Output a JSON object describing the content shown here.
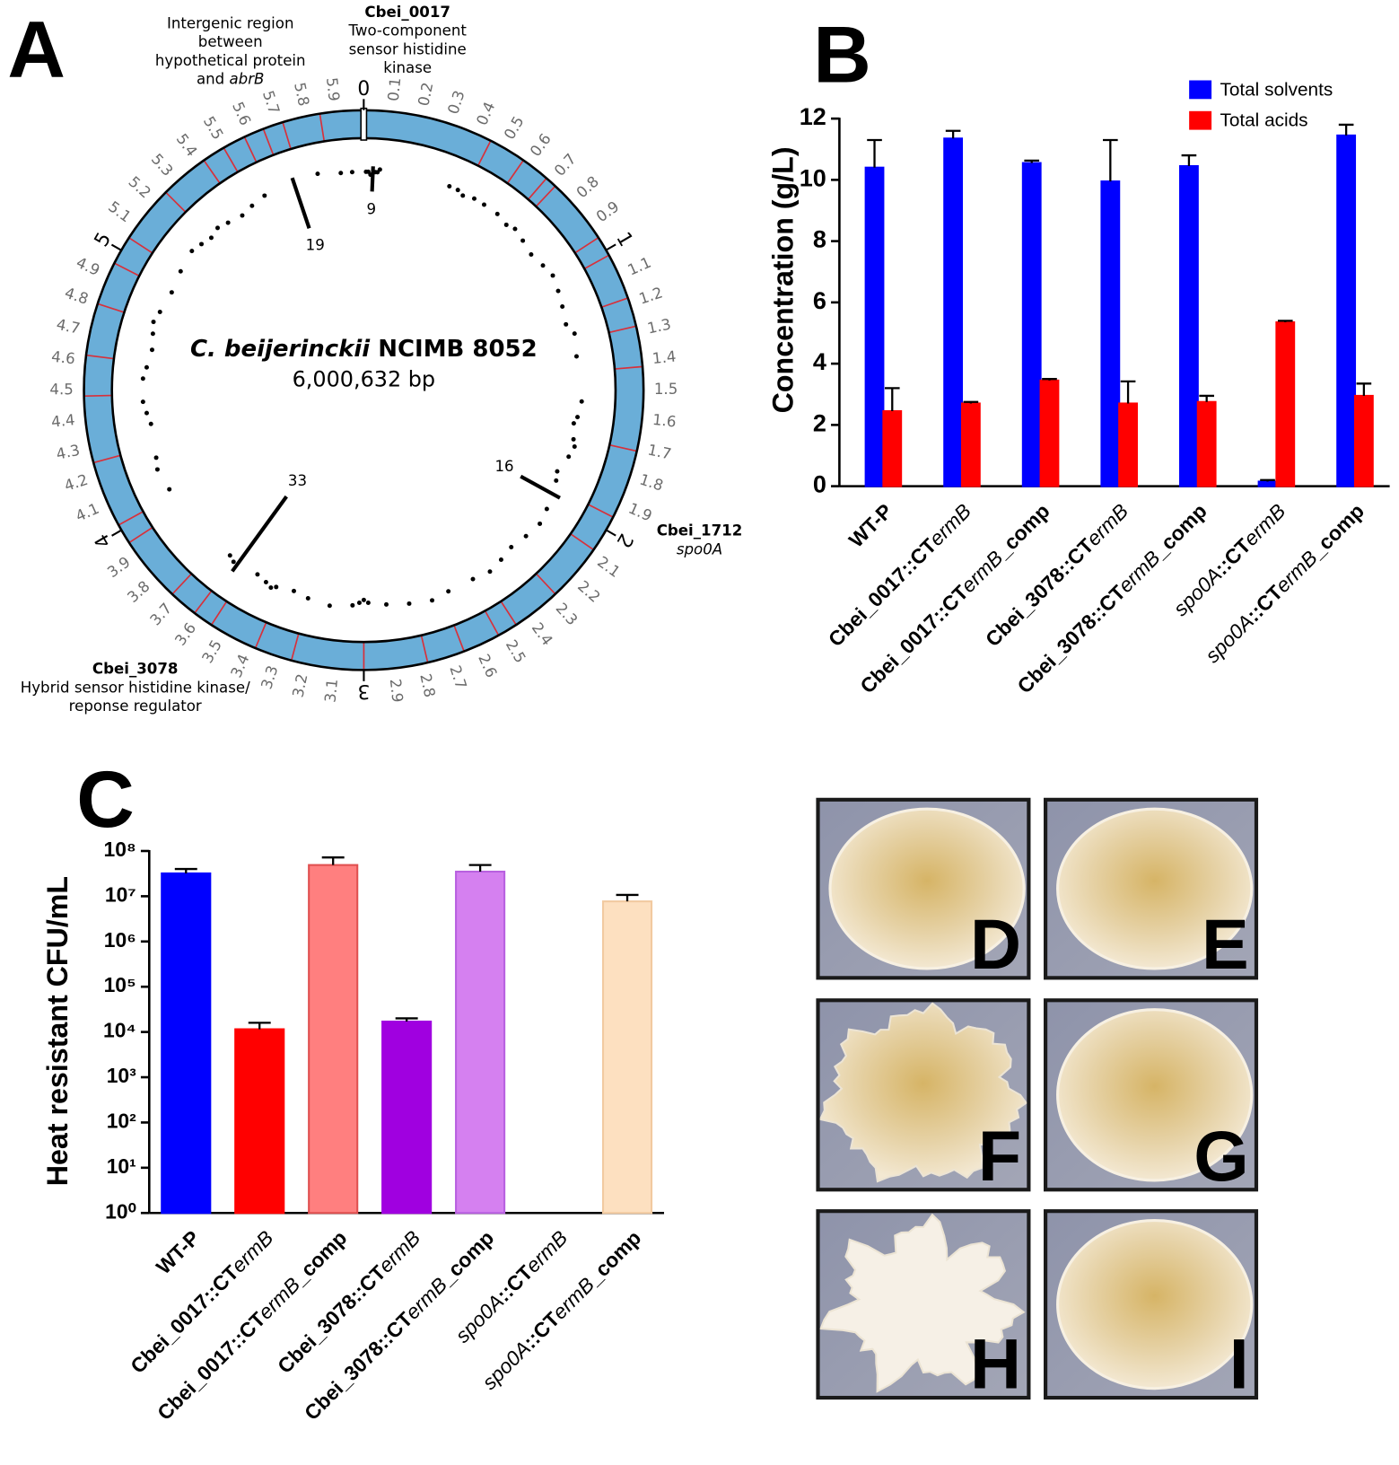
{
  "chart_data": [
    {
      "type": "circos",
      "label": "A",
      "organism": "C. beijerinckii",
      "strain": "NCIMB 8052",
      "size": "6,000,632 bp",
      "xlim": [
        0,
        6.000632
      ],
      "xticks": [
        0,
        0.1,
        0.2,
        0.3,
        0.4,
        0.5,
        0.6,
        0.7,
        0.8,
        0.9,
        1,
        1.1,
        1.2,
        1.3,
        1.4,
        1.5,
        1.6,
        1.7,
        1.8,
        1.9,
        2,
        2.1,
        2.2,
        2.3,
        2.4,
        2.5,
        2.6,
        2.7,
        2.8,
        2.9,
        3,
        3.1,
        3.2,
        3.3,
        3.4,
        3.5,
        3.6,
        3.7,
        3.8,
        3.9,
        4,
        4.1,
        4.2,
        4.3,
        4.4,
        4.5,
        4.6,
        4.7,
        4.8,
        4.9,
        5,
        5.1,
        5.2,
        5.3,
        5.4,
        5.5,
        5.6,
        5.7,
        5.8,
        5.9
      ],
      "ring_color": "#6aaed8",
      "site_color": "#d8303a",
      "sites": [
        0.45,
        0.58,
        0.68,
        0.72,
        0.95,
        1.02,
        1.18,
        1.28,
        1.42,
        1.71,
        1.95,
        2.08,
        2.28,
        2.45,
        2.52,
        2.65,
        2.78,
        3.0,
        3.25,
        3.38,
        3.55,
        3.62,
        3.72,
        3.95,
        4.02,
        4.25,
        4.48,
        4.62,
        4.8,
        4.95,
        5.05,
        5.25,
        5.42,
        5.5,
        5.58,
        5.65,
        5.72,
        5.85
      ],
      "hits": {
        "x": [
          0.01,
          0.02,
          0.03,
          0.05,
          0.06,
          0.07,
          0.38,
          0.42,
          0.45,
          0.5,
          0.55,
          0.62,
          0.68,
          0.72,
          0.78,
          0.85,
          0.92,
          0.98,
          1.05,
          1.12,
          1.2,
          1.25,
          1.35,
          1.55,
          1.62,
          1.65,
          1.72,
          1.75,
          1.8,
          1.88,
          1.92,
          2.05,
          2.12,
          2.2,
          2.28,
          2.35,
          2.42,
          2.5,
          2.62,
          2.7,
          2.8,
          2.9,
          2.98,
          3.0,
          3.02,
          3.05,
          3.15,
          3.25,
          3.32,
          3.4,
          3.42,
          3.45,
          3.5,
          3.62,
          3.65,
          4.05,
          4.15,
          4.2,
          4.35,
          4.4,
          4.45,
          4.55,
          4.6,
          4.68,
          4.75,
          4.8,
          4.85,
          4.95,
          5.05,
          5.15,
          5.2,
          5.25,
          5.3,
          5.35,
          5.42,
          5.48,
          5.55,
          5.8,
          5.9,
          5.95
        ],
        "values": [
          2,
          2,
          3,
          2,
          2,
          1,
          1,
          1,
          2,
          1,
          1,
          1,
          2,
          1,
          2,
          3,
          2,
          1,
          2,
          3,
          4,
          2,
          3,
          2,
          3,
          4,
          3,
          2,
          3,
          5,
          4,
          2,
          1,
          2,
          3,
          2,
          1,
          2,
          2,
          1,
          2,
          3,
          4,
          5,
          4,
          3,
          2,
          3,
          4,
          3,
          2,
          3,
          4,
          3,
          4,
          2,
          1,
          2,
          3,
          2,
          1,
          1,
          2,
          3,
          2,
          1,
          2,
          3,
          2,
          1,
          2,
          3,
          2,
          3,
          4,
          3,
          2,
          1,
          2,
          2
        ]
      },
      "spikes": {
        "x": [
          0.04,
          5.69,
          3.6,
          1.98
        ],
        "values": [
          9,
          19,
          33,
          16
        ]
      },
      "annotations": [
        {
          "lines": [
            "Intergenic region",
            "between",
            "hypothetical protein",
            "and abrB"
          ]
        },
        {
          "title": "Cbei_0017",
          "lines": [
            "Two-component",
            "sensor histidine",
            "kinase"
          ]
        },
        {
          "title": "Cbei_1712",
          "lines": [
            "spo0A"
          ]
        },
        {
          "title": "Cbei_3078",
          "lines": [
            "Hybrid sensor histidine kinase/",
            "reponse regulator"
          ]
        }
      ]
    },
    {
      "type": "bar",
      "label": "B",
      "ylabel": "Concentration (g/L)",
      "categories": [
        "WT-P",
        "Cbei_0017::CTermB",
        "Cbei_0017::CTermB_comp",
        "Cbei_3078::CTermB",
        "Cbei_3078::CTermB_comp",
        "spo0A::CTermB",
        "spo0A::CTermB_comp"
      ],
      "series": [
        {
          "name": "Total solvents",
          "color": "#0000ff",
          "values": [
            10.4,
            11.35,
            10.55,
            9.95,
            10.45,
            0.15,
            11.45
          ],
          "errors": [
            0.9,
            0.25,
            0.08,
            1.35,
            0.35,
            0.05,
            0.35
          ]
        },
        {
          "name": "Total acids",
          "color": "#ff0000",
          "values": [
            2.45,
            2.7,
            3.45,
            2.7,
            2.75,
            5.35,
            2.95
          ],
          "errors": [
            0.75,
            0.05,
            0.05,
            0.72,
            0.2,
            0.05,
            0.4
          ]
        }
      ],
      "ylim": [
        0,
        12
      ],
      "yticks": [
        0,
        2,
        4,
        6,
        8,
        10,
        12
      ],
      "legend": "upper right"
    },
    {
      "type": "bar",
      "label": "C",
      "ylabel": "Heat resistant CFU/mL",
      "yscale": "log",
      "categories": [
        "WT-P",
        "Cbei_0017::CTermB",
        "Cbei_0017::CTermB_comp",
        "Cbei_3078::CTermB",
        "Cbei_3078::CTermB_comp",
        "spo0A::CTermB",
        "spo0A::CTermB_comp"
      ],
      "values": [
        32000000,
        11500,
        49000000,
        17000,
        35000000,
        null,
        7700000
      ],
      "errors": [
        8000000,
        4500,
        23000000,
        3000,
        14000000,
        null,
        3000000
      ],
      "colors": [
        "#0000ff",
        "#ff0000",
        "#ff7f7f",
        "#a000e0",
        "#d580f0",
        "#ffffff",
        "#fde0c0"
      ],
      "edgecolors": [
        "#0000ff",
        "#ff0000",
        "#e05050",
        "#a000e0",
        "#b860e0",
        "#ffffff",
        "#f2caa0"
      ],
      "ylim": [
        1,
        100000000
      ],
      "yticks": [
        {
          "value": 1,
          "label": "10⁰"
        },
        {
          "value": 10,
          "label": "10¹"
        },
        {
          "value": 100,
          "label": "10²"
        },
        {
          "value": 1000,
          "label": "10³"
        },
        {
          "value": 10000,
          "label": "10⁴"
        },
        {
          "value": 100000,
          "label": "10⁵"
        },
        {
          "value": 1000000,
          "label": "10⁶"
        },
        {
          "value": 10000000,
          "label": "10⁷"
        },
        {
          "value": 100000000,
          "label": "10⁸"
        }
      ]
    }
  ],
  "photos": {
    "labels": [
      "D",
      "E",
      "F",
      "G",
      "H",
      "I"
    ]
  }
}
